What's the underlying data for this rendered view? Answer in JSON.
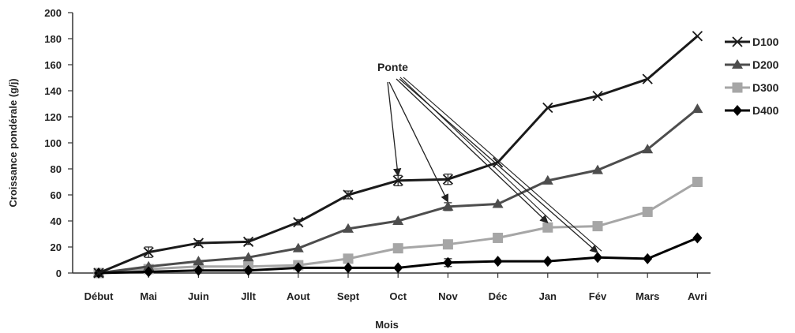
{
  "chart_data": {
    "type": "line",
    "title": "",
    "xlabel": "Mois",
    "ylabel": "Croissance pondérale (g/j)",
    "categories": [
      "Début",
      "Mai",
      "Juin",
      "Jllt",
      "Aout",
      "Sept",
      "Oct",
      "Nov",
      "Déc",
      "Jan",
      "Fév",
      "Mars",
      "Avri"
    ],
    "ylim": [
      0,
      200
    ],
    "yticks": [
      0,
      20,
      40,
      60,
      80,
      100,
      120,
      140,
      160,
      180,
      200
    ],
    "grid": false,
    "legend_position": "right",
    "series": [
      {
        "name": "D100",
        "marker": "x",
        "color": "#1a1a1a",
        "values": [
          0,
          16,
          23,
          24,
          39,
          60,
          71,
          72,
          85,
          127,
          136,
          149,
          182
        ]
      },
      {
        "name": "D200",
        "marker": "triangle",
        "color": "#4d4d4d",
        "values": [
          0,
          5,
          9,
          12,
          19,
          34,
          40,
          51,
          53,
          71,
          79,
          95,
          126
        ]
      },
      {
        "name": "D300",
        "marker": "square",
        "color": "#a6a6a6",
        "values": [
          0,
          3,
          5,
          5,
          6,
          11,
          19,
          22,
          27,
          35,
          36,
          47,
          70
        ]
      },
      {
        "name": "D400",
        "marker": "diamond",
        "color": "#000000",
        "values": [
          0,
          1,
          2,
          2,
          4,
          4,
          4,
          8,
          9,
          9,
          12,
          11,
          27
        ]
      }
    ],
    "error_bar_points": [
      {
        "series": 0,
        "index": 1,
        "err": 4
      },
      {
        "series": 0,
        "index": 2,
        "err": 2
      },
      {
        "series": 0,
        "index": 3,
        "err": 2
      },
      {
        "series": 0,
        "index": 4,
        "err": 2
      },
      {
        "series": 0,
        "index": 5,
        "err": 3
      },
      {
        "series": 0,
        "index": 6,
        "err": 4
      },
      {
        "series": 0,
        "index": 7,
        "err": 4
      },
      {
        "series": 1,
        "index": 7,
        "err": 3
      },
      {
        "series": 2,
        "index": 5,
        "err": 3
      },
      {
        "series": 3,
        "index": 7,
        "err": 3
      }
    ],
    "annotation": {
      "label": "Ponte",
      "targets": [
        {
          "series": 0,
          "index": 6
        },
        {
          "series": 1,
          "index": 7
        },
        {
          "series": 2,
          "index": 9
        },
        {
          "series": 3,
          "index": 10
        }
      ]
    }
  }
}
